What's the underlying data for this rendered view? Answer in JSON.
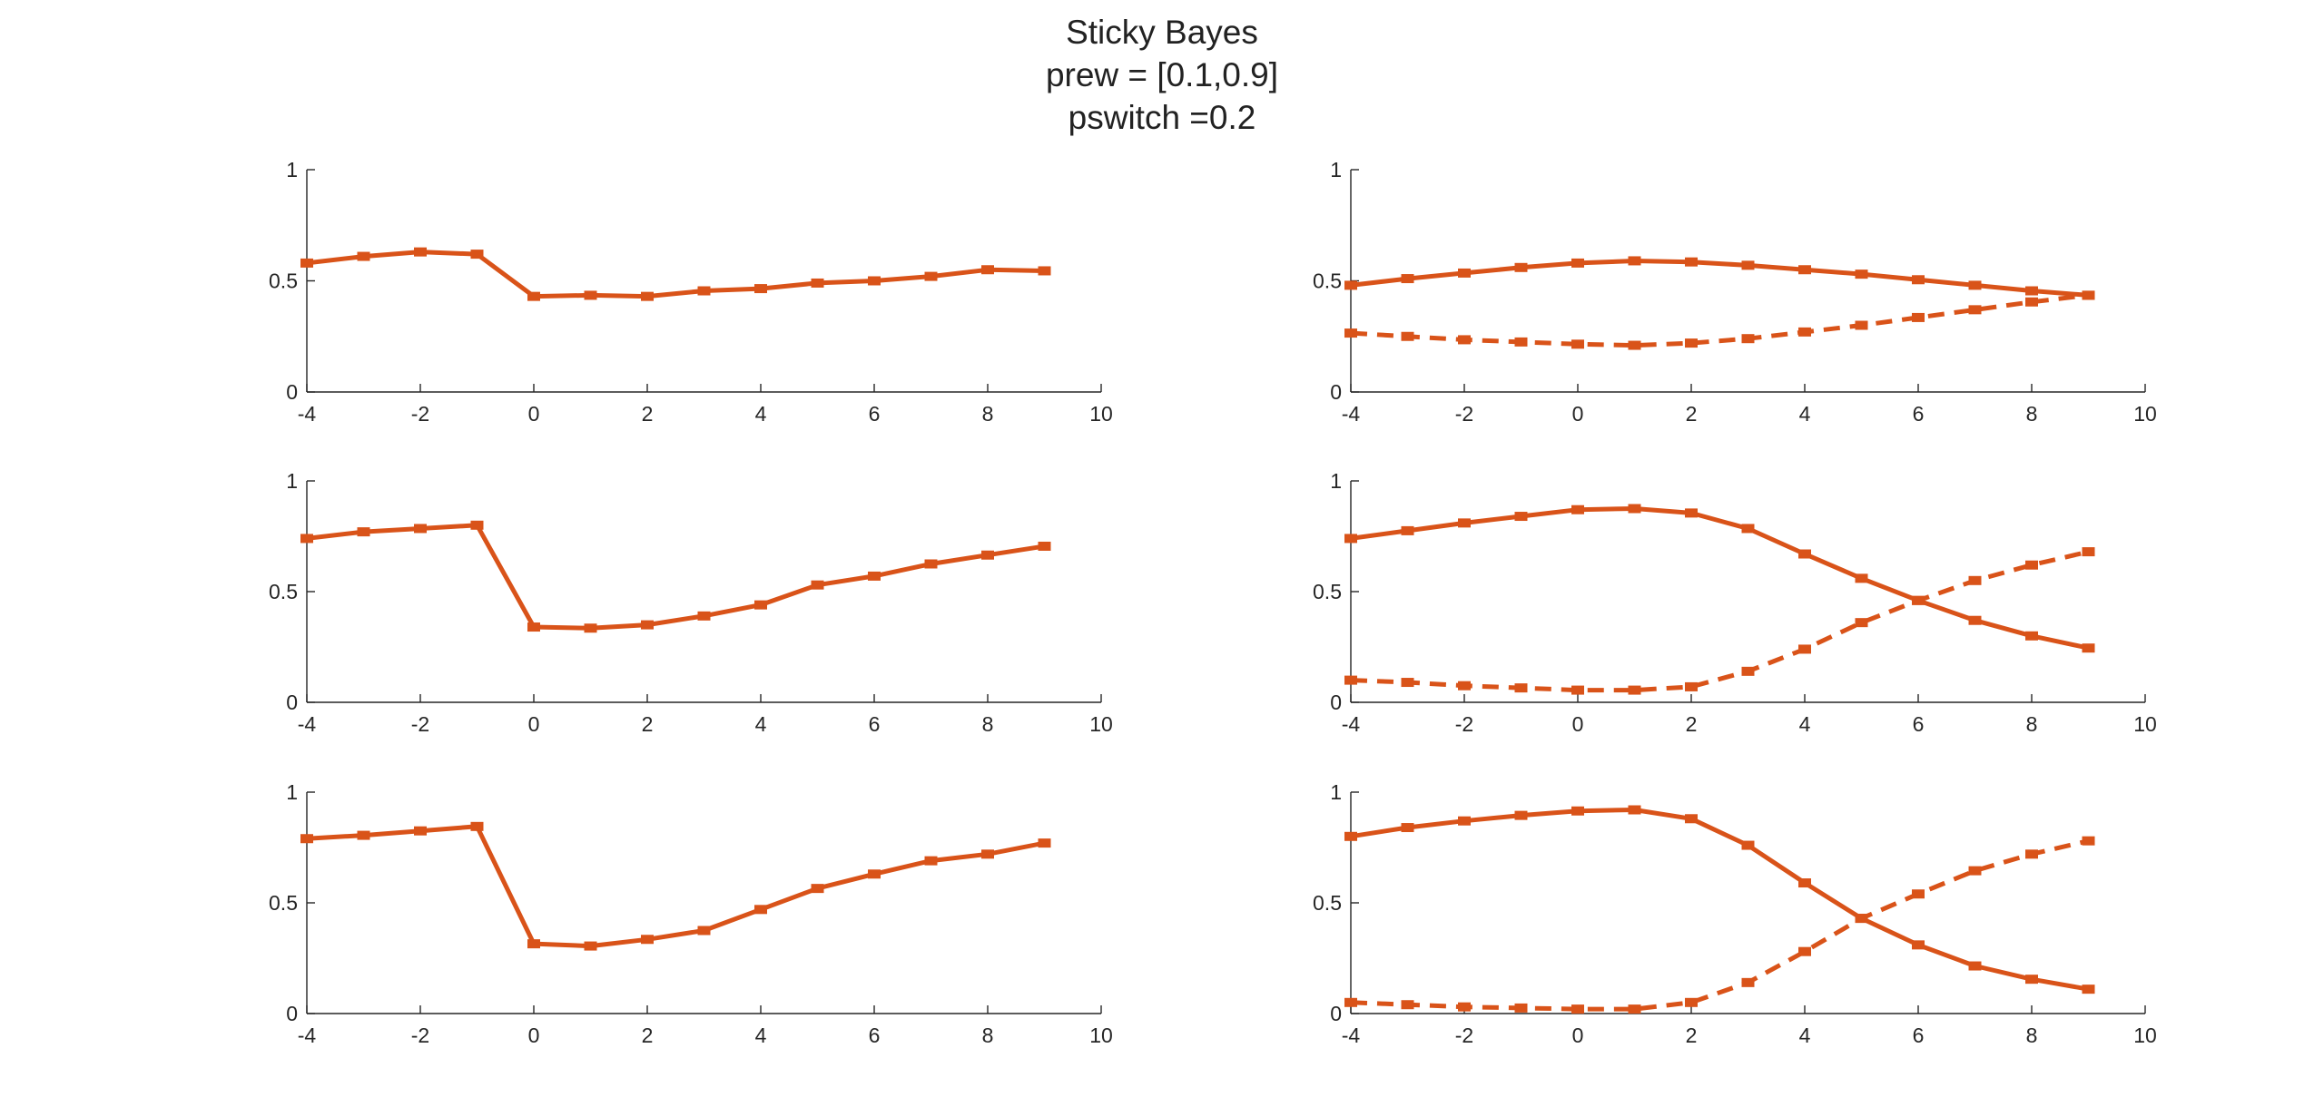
{
  "title_lines": [
    "Sticky Bayes",
    "prew = [0.1,0.9]",
    "pswitch =0.2"
  ],
  "colors": {
    "series": "#D95319",
    "axis": "#262626"
  },
  "chart_data": [
    {
      "type": "line",
      "x": [
        -4,
        -3,
        -2,
        -1,
        0,
        1,
        2,
        3,
        4,
        5,
        6,
        7,
        8,
        9
      ],
      "xlim": [
        -4,
        10
      ],
      "ylim": [
        0,
        1
      ],
      "xticks": [
        "-4",
        "-2",
        "0",
        "2",
        "4",
        "6",
        "8",
        "10"
      ],
      "yticks": [
        "0",
        "0.5",
        "1"
      ],
      "grid": false,
      "series": [
        {
          "style": "solid",
          "values": [
            0.58,
            0.61,
            0.63,
            0.62,
            0.43,
            0.435,
            0.43,
            0.455,
            0.465,
            0.49,
            0.5,
            0.52,
            0.55,
            0.545
          ]
        }
      ]
    },
    {
      "type": "line",
      "x": [
        -4,
        -3,
        -2,
        -1,
        0,
        1,
        2,
        3,
        4,
        5,
        6,
        7,
        8,
        9
      ],
      "xlim": [
        -4,
        10
      ],
      "ylim": [
        0,
        1
      ],
      "xticks": [
        "-4",
        "-2",
        "0",
        "2",
        "4",
        "6",
        "8",
        "10"
      ],
      "yticks": [
        "0",
        "0.5",
        "1"
      ],
      "grid": false,
      "series": [
        {
          "style": "solid",
          "values": [
            0.48,
            0.51,
            0.535,
            0.56,
            0.58,
            0.59,
            0.585,
            0.57,
            0.55,
            0.53,
            0.505,
            0.48,
            0.455,
            0.435
          ]
        },
        {
          "style": "dashed",
          "values": [
            0.265,
            0.25,
            0.235,
            0.225,
            0.215,
            0.21,
            0.22,
            0.24,
            0.27,
            0.3,
            0.335,
            0.37,
            0.405,
            0.435
          ]
        }
      ]
    },
    {
      "type": "line",
      "x": [
        -4,
        -3,
        -2,
        -1,
        0,
        1,
        2,
        3,
        4,
        5,
        6,
        7,
        8,
        9
      ],
      "xlim": [
        -4,
        10
      ],
      "ylim": [
        0,
        1
      ],
      "xticks": [
        "-4",
        "-2",
        "0",
        "2",
        "4",
        "6",
        "8",
        "10"
      ],
      "yticks": [
        "0",
        "0.5",
        "1"
      ],
      "grid": false,
      "series": [
        {
          "style": "solid",
          "values": [
            0.74,
            0.77,
            0.785,
            0.8,
            0.34,
            0.335,
            0.35,
            0.39,
            0.44,
            0.53,
            0.57,
            0.625,
            0.665,
            0.705
          ]
        }
      ]
    },
    {
      "type": "line",
      "x": [
        -4,
        -3,
        -2,
        -1,
        0,
        1,
        2,
        3,
        4,
        5,
        6,
        7,
        8,
        9
      ],
      "xlim": [
        -4,
        10
      ],
      "ylim": [
        0,
        1
      ],
      "xticks": [
        "-4",
        "-2",
        "0",
        "2",
        "4",
        "6",
        "8",
        "10"
      ],
      "yticks": [
        "0",
        "0.5",
        "1"
      ],
      "grid": false,
      "series": [
        {
          "style": "solid",
          "values": [
            0.74,
            0.775,
            0.81,
            0.84,
            0.87,
            0.875,
            0.855,
            0.785,
            0.67,
            0.56,
            0.46,
            0.37,
            0.3,
            0.245
          ]
        },
        {
          "style": "dashed",
          "values": [
            0.1,
            0.09,
            0.075,
            0.065,
            0.055,
            0.055,
            0.07,
            0.14,
            0.24,
            0.36,
            0.46,
            0.55,
            0.62,
            0.68
          ]
        }
      ]
    },
    {
      "type": "line",
      "x": [
        -4,
        -3,
        -2,
        -1,
        0,
        1,
        2,
        3,
        4,
        5,
        6,
        7,
        8,
        9
      ],
      "xlim": [
        -4,
        10
      ],
      "ylim": [
        0,
        1
      ],
      "xticks": [
        "-4",
        "-2",
        "0",
        "2",
        "4",
        "6",
        "8",
        "10"
      ],
      "yticks": [
        "0",
        "0.5",
        "1"
      ],
      "grid": false,
      "series": [
        {
          "style": "solid",
          "values": [
            0.79,
            0.805,
            0.825,
            0.845,
            0.315,
            0.305,
            0.335,
            0.375,
            0.47,
            0.565,
            0.63,
            0.69,
            0.72,
            0.77
          ]
        }
      ]
    },
    {
      "type": "line",
      "x": [
        -4,
        -3,
        -2,
        -1,
        0,
        1,
        2,
        3,
        4,
        5,
        6,
        7,
        8,
        9
      ],
      "xlim": [
        -4,
        10
      ],
      "ylim": [
        0,
        1
      ],
      "xticks": [
        "-4",
        "-2",
        "0",
        "2",
        "4",
        "6",
        "8",
        "10"
      ],
      "yticks": [
        "0",
        "0.5",
        "1"
      ],
      "grid": false,
      "series": [
        {
          "style": "solid",
          "values": [
            0.8,
            0.84,
            0.87,
            0.895,
            0.915,
            0.92,
            0.88,
            0.76,
            0.59,
            0.43,
            0.31,
            0.215,
            0.155,
            0.11
          ]
        },
        {
          "style": "dashed",
          "values": [
            0.05,
            0.04,
            0.03,
            0.025,
            0.02,
            0.02,
            0.05,
            0.14,
            0.28,
            0.43,
            0.54,
            0.645,
            0.72,
            0.78
          ]
        }
      ]
    }
  ]
}
